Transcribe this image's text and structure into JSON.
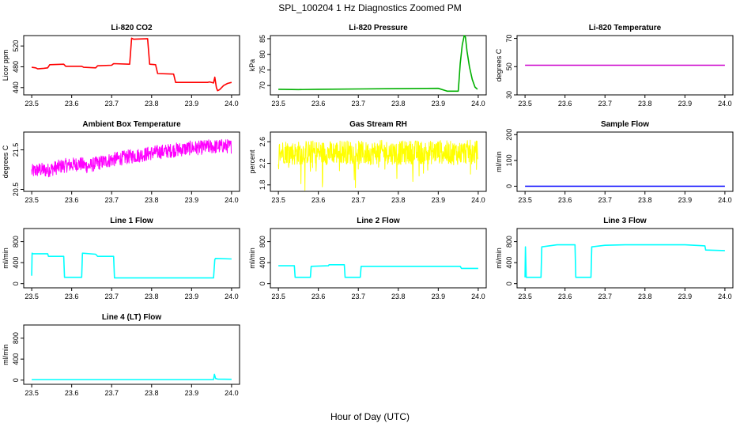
{
  "figure": {
    "title": "SPL_100204  1 Hz Diagnostics Zoomed PM",
    "xlabel": "Hour of Day (UTC)"
  },
  "chart_data": [
    {
      "type": "line",
      "title": "Li-820 CO2",
      "ylabel": "Licor ppm",
      "color": "#ff0000",
      "xlim": [
        23.48,
        24.02
      ],
      "ylim": [
        426,
        540
      ],
      "xticks": [
        "23.5",
        "23.6",
        "23.7",
        "23.8",
        "23.9",
        "24.0"
      ],
      "yticks": [
        "440",
        "480",
        "520"
      ],
      "series": [
        {
          "x": [
            23.5,
            23.51,
            23.515,
            23.53,
            23.54,
            23.545,
            23.58,
            23.585,
            23.625,
            23.63,
            23.66,
            23.665,
            23.7,
            23.705,
            23.745,
            23.75,
            23.755,
            23.79,
            23.795,
            23.81,
            23.815,
            23.855,
            23.86,
            23.94,
            23.945,
            23.955,
            23.958,
            23.962,
            23.965,
            23.97,
            23.975,
            23.98,
            23.99,
            24.0
          ],
          "y": [
            479,
            478,
            476,
            477,
            478,
            484,
            485,
            481,
            481,
            479,
            478,
            482,
            483,
            486,
            485,
            535,
            533,
            534,
            485,
            484,
            467,
            466,
            450,
            450,
            451,
            449,
            460,
            440,
            434,
            436,
            440,
            444,
            448,
            450
          ]
        }
      ]
    },
    {
      "type": "line",
      "title": "Li-820 Pressure",
      "ylabel": "kPa",
      "color": "#00b000",
      "xlim": [
        23.48,
        24.02
      ],
      "ylim": [
        67,
        86
      ],
      "xticks": [
        "23.5",
        "23.6",
        "23.7",
        "23.8",
        "23.9",
        "24.0"
      ],
      "yticks": [
        "70",
        "75",
        "80",
        "85"
      ],
      "series": [
        {
          "x": [
            23.5,
            23.55,
            23.6,
            23.7,
            23.8,
            23.9,
            23.92,
            23.922,
            23.95,
            23.952,
            23.955,
            23.96,
            23.965,
            23.968,
            23.972,
            23.978,
            23.985,
            23.992,
            23.998
          ],
          "y": [
            68.8,
            68.7,
            68.8,
            68.9,
            69.0,
            69.1,
            68.3,
            68.2,
            68.2,
            71.5,
            77.0,
            83.0,
            86.0,
            85.5,
            81.0,
            76.0,
            72.0,
            69.5,
            68.8
          ]
        }
      ]
    },
    {
      "type": "line",
      "title": "Li-820 Temperature",
      "ylabel": "degrees C",
      "color": "#cc00cc",
      "xlim": [
        23.48,
        24.02
      ],
      "ylim": [
        30,
        72
      ],
      "xticks": [
        "23.5",
        "23.6",
        "23.7",
        "23.8",
        "23.9",
        "24.0"
      ],
      "yticks": [
        "30",
        "50",
        "70"
      ],
      "series": [
        {
          "x": [
            23.5,
            24.0
          ],
          "y": [
            51,
            51
          ]
        }
      ]
    },
    {
      "type": "line",
      "title": "Ambient Box Temperature",
      "ylabel": "degrees C",
      "color": "#ff00ff",
      "xlim": [
        23.48,
        24.02
      ],
      "ylim": [
        20.45,
        21.95
      ],
      "xticks": [
        "23.5",
        "23.6",
        "23.7",
        "23.8",
        "23.9",
        "24.0"
      ],
      "yticks": [
        "20.5",
        "21.5"
      ],
      "series": [
        {
          "x": [
            23.5,
            23.52,
            23.54,
            23.56,
            23.58,
            23.6,
            23.62,
            23.64,
            23.66,
            23.68,
            23.7,
            23.72,
            23.74,
            23.76,
            23.78,
            23.8,
            23.82,
            23.84,
            23.86,
            23.88,
            23.9,
            23.92,
            23.94,
            23.96,
            23.98,
            24.0
          ],
          "y": [
            20.95,
            21.0,
            20.98,
            21.05,
            21.1,
            21.12,
            21.15,
            21.08,
            21.15,
            21.2,
            21.25,
            21.28,
            21.32,
            21.35,
            21.38,
            21.42,
            21.45,
            21.47,
            21.5,
            21.52,
            21.55,
            21.55,
            21.58,
            21.58,
            21.6,
            21.58
          ]
        }
      ]
    },
    {
      "type": "line",
      "title": "Gas Stream RH",
      "ylabel": "percent",
      "color": "#ffff00",
      "xlim": [
        23.48,
        24.02
      ],
      "ylim": [
        1.68,
        2.78
      ],
      "xticks": [
        "23.5",
        "23.6",
        "23.7",
        "23.8",
        "23.9",
        "24.0"
      ],
      "yticks": [
        "1.8",
        "2.2",
        "2.6"
      ],
      "series": [
        {
          "x": [
            23.5,
            23.52,
            23.54,
            23.56,
            23.58,
            23.6,
            23.62,
            23.64,
            23.66,
            23.68,
            23.7,
            23.72,
            23.74,
            23.76,
            23.78,
            23.8,
            23.82,
            23.84,
            23.86,
            23.88,
            23.9,
            23.92,
            23.94,
            23.96,
            23.98,
            24.0
          ],
          "y": [
            2.4,
            2.42,
            2.38,
            2.4,
            2.41,
            2.4,
            2.39,
            2.4,
            2.42,
            2.4,
            2.4,
            2.38,
            2.4,
            2.41,
            2.4,
            2.39,
            2.4,
            2.41,
            2.4,
            2.4,
            2.42,
            2.4,
            2.39,
            2.4,
            2.41,
            2.4
          ]
        }
      ]
    },
    {
      "type": "line",
      "title": "Sample Flow",
      "ylabel": "ml/min",
      "color": "#0000ff",
      "xlim": [
        23.48,
        24.02
      ],
      "ylim": [
        -20,
        210
      ],
      "xticks": [
        "23.5",
        "23.6",
        "23.7",
        "23.8",
        "23.9",
        "24.0"
      ],
      "yticks": [
        "0",
        "100",
        "200"
      ],
      "series": [
        {
          "x": [
            23.5,
            24.0
          ],
          "y": [
            0,
            0
          ]
        }
      ]
    },
    {
      "type": "line",
      "title": "Line 1 Flow",
      "ylabel": "ml/min",
      "color": "#00ffff",
      "xlim": [
        23.48,
        24.02
      ],
      "ylim": [
        -80,
        1050
      ],
      "xticks": [
        "23.5",
        "23.6",
        "23.7",
        "23.8",
        "23.9",
        "24.0"
      ],
      "yticks": [
        "0",
        "400",
        "800"
      ],
      "series": [
        {
          "x": [
            23.5,
            23.501,
            23.503,
            23.54,
            23.542,
            23.58,
            23.582,
            23.625,
            23.627,
            23.66,
            23.665,
            23.705,
            23.707,
            23.955,
            23.958,
            23.96,
            24.0
          ],
          "y": [
            150,
            580,
            570,
            570,
            520,
            520,
            120,
            120,
            580,
            560,
            520,
            520,
            110,
            110,
            460,
            480,
            470
          ]
        }
      ]
    },
    {
      "type": "line",
      "title": "Line 2 Flow",
      "ylabel": "ml/min",
      "color": "#00ffff",
      "xlim": [
        23.48,
        24.02
      ],
      "ylim": [
        -80,
        1050
      ],
      "xticks": [
        "23.5",
        "23.6",
        "23.7",
        "23.8",
        "23.9",
        "24.0"
      ],
      "yticks": [
        "0",
        "400",
        "800"
      ],
      "series": [
        {
          "x": [
            23.5,
            23.54,
            23.542,
            23.58,
            23.582,
            23.625,
            23.627,
            23.665,
            23.667,
            23.705,
            23.707,
            23.955,
            23.958,
            24.0
          ],
          "y": [
            340,
            340,
            120,
            120,
            330,
            340,
            360,
            360,
            120,
            120,
            330,
            330,
            290,
            290
          ]
        }
      ]
    },
    {
      "type": "line",
      "title": "Line 3 Flow",
      "ylabel": "ml/min",
      "color": "#00ffff",
      "xlim": [
        23.48,
        24.02
      ],
      "ylim": [
        -80,
        1050
      ],
      "xticks": [
        "23.5",
        "23.6",
        "23.7",
        "23.8",
        "23.9",
        "24.0"
      ],
      "yticks": [
        "0",
        "400",
        "800"
      ],
      "series": [
        {
          "x": [
            23.5,
            23.501,
            23.503,
            23.54,
            23.542,
            23.58,
            23.625,
            23.627,
            23.665,
            23.667,
            23.7,
            23.75,
            23.8,
            23.9,
            23.95,
            23.952,
            24.0
          ],
          "y": [
            120,
            700,
            120,
            120,
            700,
            740,
            740,
            120,
            120,
            700,
            730,
            740,
            740,
            740,
            720,
            640,
            630
          ]
        }
      ]
    },
    {
      "type": "line",
      "title": "Line 4 (LT) Flow",
      "ylabel": "ml/min",
      "color": "#00ffff",
      "xlim": [
        23.48,
        24.02
      ],
      "ylim": [
        -80,
        1050
      ],
      "xticks": [
        "23.5",
        "23.6",
        "23.7",
        "23.8",
        "23.9",
        "24.0"
      ],
      "yticks": [
        "0",
        "400",
        "800"
      ],
      "series": [
        {
          "x": [
            23.5,
            23.955,
            23.957,
            23.96,
            23.965,
            24.0
          ],
          "y": [
            10,
            10,
            110,
            30,
            20,
            15
          ]
        }
      ]
    }
  ]
}
